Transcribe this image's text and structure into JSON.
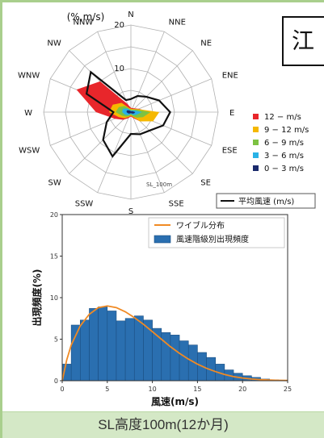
{
  "rose": {
    "unit_label": "(%,m/s)",
    "station_tag": "SL_100m",
    "ring_labels": [
      "10",
      "20"
    ],
    "directions": [
      "N",
      "NNE",
      "NE",
      "ENE",
      "E",
      "ESE",
      "SE",
      "SSE",
      "S",
      "SSW",
      "SW",
      "WSW",
      "W",
      "WNW",
      "NW",
      "NNW"
    ]
  },
  "side_box": {
    "text": "江"
  },
  "caption": {
    "text": "SL高度100m(12か月)"
  },
  "chart_data": [
    {
      "type": "radar",
      "directions": [
        "N",
        "NNE",
        "NE",
        "ENE",
        "E",
        "ESE",
        "SE",
        "SSE",
        "S",
        "SSW",
        "SW",
        "WSW",
        "W",
        "WNW",
        "NW",
        "NNW"
      ],
      "rmax": 20,
      "ring_labels": [
        10,
        20
      ],
      "legend_placement": "right",
      "series": [
        {
          "name": "12 − m/s",
          "color": "#e8262b",
          "values": [
            1,
            1,
            1.2,
            2,
            4.5,
            5,
            3,
            1.5,
            1,
            1.5,
            2.5,
            4,
            8,
            13.5,
            10,
            2
          ]
        },
        {
          "name": "9 − 12 m/s",
          "color": "#f5b800",
          "values": [
            0.8,
            0.8,
            1,
            1.8,
            6.5,
            5.5,
            3,
            1.2,
            0.8,
            1.2,
            2,
            3,
            5,
            4.5,
            3,
            1
          ]
        },
        {
          "name": "6 − 9 m/s",
          "color": "#7dc242",
          "values": [
            0.6,
            0.6,
            0.8,
            1.5,
            4.5,
            3,
            1.8,
            1,
            0.6,
            1,
            1.5,
            2.2,
            3.5,
            3,
            2,
            0.8
          ]
        },
        {
          "name": "3 − 6 m/s",
          "color": "#29b2e6",
          "values": [
            0.4,
            0.4,
            0.6,
            1,
            2.5,
            1.5,
            1,
            0.6,
            0.4,
            0.6,
            1,
            1.5,
            2,
            2,
            1.2,
            0.5
          ]
        },
        {
          "name": "0 − 3 m/s",
          "color": "#1a2a6c",
          "values": [
            0.2,
            0.2,
            0.3,
            0.5,
            1,
            0.8,
            0.5,
            0.3,
            0.2,
            0.3,
            0.5,
            0.7,
            1,
            1,
            0.6,
            0.3
          ]
        }
      ],
      "line": {
        "name": "平均風速 (m/s)",
        "color": "#111111",
        "values": [
          3,
          4,
          5,
          7,
          9,
          8,
          6,
          5.5,
          5,
          11,
          9,
          6,
          4,
          11,
          13,
          3
        ]
      }
    },
    {
      "type": "bar",
      "xlabel": "風速(m/s)",
      "ylabel": "出現頻度(%)",
      "xlim": [
        0,
        25
      ],
      "ylim": [
        0,
        20
      ],
      "xticks": [
        0,
        5,
        10,
        15,
        20,
        25
      ],
      "yticks": [
        0,
        5,
        10,
        15,
        20
      ],
      "legend_placement": "top-right",
      "bins": [
        [
          0,
          1,
          2
        ],
        [
          1,
          2,
          6.7
        ],
        [
          2,
          3,
          7.3
        ],
        [
          3,
          4,
          8.7
        ],
        [
          4,
          5,
          8.9
        ],
        [
          5,
          6,
          8.4
        ],
        [
          6,
          7,
          7.2
        ],
        [
          7,
          8,
          7.5
        ],
        [
          8,
          9,
          7.8
        ],
        [
          9,
          10,
          7.3
        ],
        [
          10,
          11,
          6.3
        ],
        [
          11,
          12,
          5.8
        ],
        [
          12,
          13,
          5.5
        ],
        [
          13,
          14,
          4.8
        ],
        [
          14,
          15,
          4.3
        ],
        [
          15,
          16,
          3.4
        ],
        [
          16,
          17,
          2.8
        ],
        [
          17,
          18,
          2.0
        ],
        [
          18,
          19,
          1.3
        ],
        [
          19,
          20,
          0.9
        ],
        [
          20,
          21,
          0.6
        ],
        [
          21,
          22,
          0.4
        ],
        [
          22,
          23,
          0.2
        ],
        [
          23,
          24,
          0.1
        ]
      ],
      "bar_name": "風速階級別出現頻度",
      "bar_color": "#2a6fb0",
      "curve": {
        "name": "ワイブル分布",
        "color": "#f08a24",
        "x": [
          0,
          0.5,
          1,
          2,
          3,
          4,
          5,
          6,
          7,
          8,
          9,
          10,
          11,
          12,
          13,
          14,
          15,
          16,
          17,
          18,
          19,
          20,
          21,
          22,
          23,
          24,
          25
        ],
        "y": [
          0,
          2.5,
          4.3,
          6.6,
          8.0,
          8.8,
          9.0,
          8.8,
          8.3,
          7.6,
          6.8,
          5.9,
          5.0,
          4.1,
          3.3,
          2.6,
          2.0,
          1.5,
          1.1,
          0.75,
          0.5,
          0.33,
          0.21,
          0.13,
          0.08,
          0.05,
          0.03
        ]
      }
    }
  ]
}
